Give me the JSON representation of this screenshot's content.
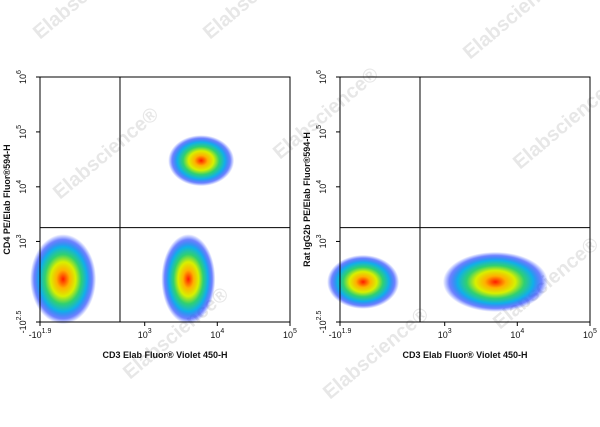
{
  "watermark": "Elabscience®",
  "chart_data": [
    {
      "type": "density",
      "ylabel": "CD4 PE/Elab Fluor®594-H",
      "xlabel": "CD3 Elab Fluor® Violet 450-H",
      "xscale": "biexponential",
      "yscale": "biexponential",
      "xlim": [
        -79.4,
        100000
      ],
      "ylim": [
        -316,
        1000000
      ],
      "xticks": [
        {
          "value": -79.4,
          "label": "-10",
          "exponent": "1.9"
        },
        {
          "value": 1000,
          "label": "10",
          "exponent": "3"
        },
        {
          "value": 10000,
          "label": "10",
          "exponent": "4"
        },
        {
          "value": 100000,
          "label": "10",
          "exponent": "5"
        }
      ],
      "yticks": [
        {
          "value": -316,
          "label": "-10",
          "exponent": "2.5"
        },
        {
          "value": 1000,
          "label": "10",
          "exponent": "3"
        },
        {
          "value": 10000,
          "label": "10",
          "exponent": "4"
        },
        {
          "value": 100000,
          "label": "10",
          "exponent": "5"
        },
        {
          "value": 1000000,
          "label": "10",
          "exponent": "6"
        }
      ],
      "gate": {
        "x": 450,
        "y": 1800
      },
      "populations": {
        "x": [
          20,
          4000,
          6000
        ],
        "y": [
          150,
          150,
          30000
        ]
      }
    },
    {
      "type": "density",
      "ylabel": "Rat IgG2b PE/Elab Fluor®594-H",
      "xlabel": "CD3 Elab Fluor® Violet 450-H",
      "xscale": "biexponential",
      "yscale": "biexponential",
      "xlim": [
        -79.4,
        100000
      ],
      "ylim": [
        -316,
        1000000
      ],
      "xticks": [
        {
          "value": -79.4,
          "label": "-10",
          "exponent": "1.9"
        },
        {
          "value": 1000,
          "label": "10",
          "exponent": "3"
        },
        {
          "value": 10000,
          "label": "10",
          "exponent": "4"
        },
        {
          "value": 100000,
          "label": "10",
          "exponent": "5"
        }
      ],
      "yticks": [
        {
          "value": -316,
          "label": "-10",
          "exponent": "2.5"
        },
        {
          "value": 1000,
          "label": "10",
          "exponent": "3"
        },
        {
          "value": 10000,
          "label": "10",
          "exponent": "4"
        },
        {
          "value": 100000,
          "label": "10",
          "exponent": "5"
        },
        {
          "value": 1000000,
          "label": "10",
          "exponent": "6"
        }
      ],
      "gate": {
        "x": 450,
        "y": 1800
      },
      "populations": {
        "x": [
          20,
          5000
        ],
        "y": [
          120,
          120
        ]
      }
    }
  ]
}
